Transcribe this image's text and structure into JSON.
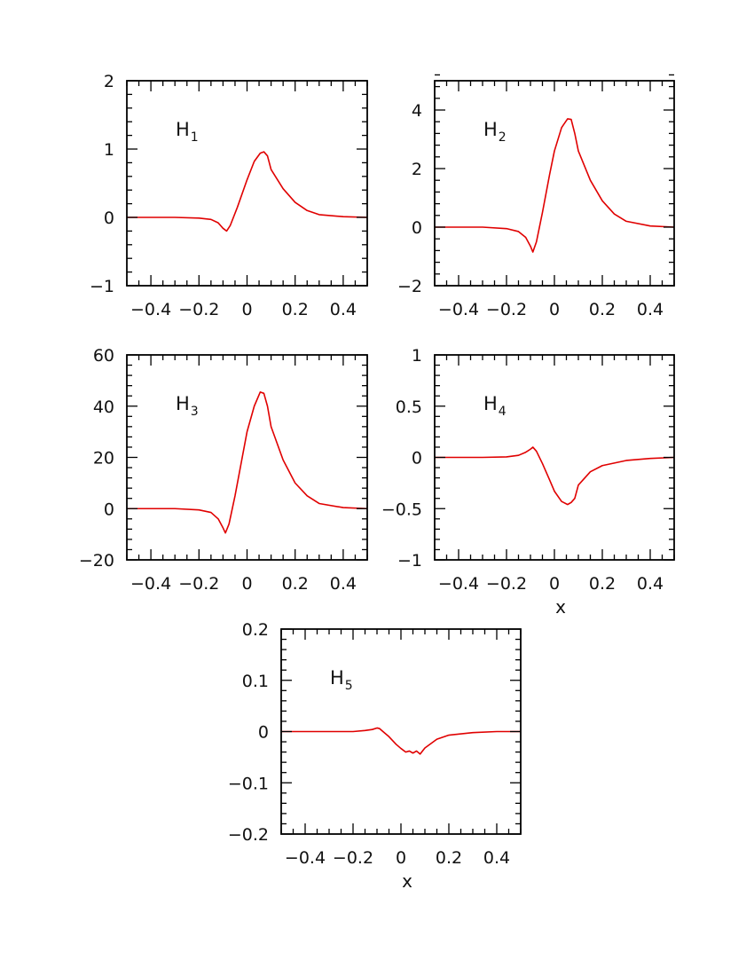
{
  "chart_data": [
    {
      "type": "line",
      "title": "H",
      "title_sub": "1",
      "xlabel": "",
      "ylabel": "",
      "xlim": [
        -0.5,
        0.5
      ],
      "ylim": [
        -1,
        2
      ],
      "xticks": [
        -0.4,
        -0.2,
        0,
        0.2,
        0.4
      ],
      "xtick_labels": [
        "−0.4",
        "−0.2",
        "0",
        "0.2",
        "0.4"
      ],
      "yticks": [
        -1,
        0,
        1,
        2
      ],
      "ytick_labels": [
        "−1",
        "0",
        "1",
        "2"
      ],
      "grid": false,
      "series": [
        {
          "color": "#e00000",
          "x": [
            -0.5,
            -0.3,
            -0.2,
            -0.15,
            -0.12,
            -0.1,
            -0.085,
            -0.07,
            -0.04,
            0.0,
            0.03,
            0.055,
            0.07,
            0.085,
            0.1,
            0.15,
            0.2,
            0.25,
            0.3,
            0.4,
            0.5
          ],
          "y": [
            0.0,
            0.0,
            -0.01,
            -0.03,
            -0.08,
            -0.16,
            -0.2,
            -0.12,
            0.15,
            0.55,
            0.82,
            0.94,
            0.96,
            0.9,
            0.7,
            0.42,
            0.22,
            0.1,
            0.04,
            0.01,
            0.0
          ]
        }
      ]
    },
    {
      "type": "line",
      "title": "H",
      "title_sub": "2",
      "xlabel": "",
      "ylabel": "",
      "xlim": [
        -0.5,
        0.5
      ],
      "ylim": [
        -2,
        5
      ],
      "xticks": [
        -0.4,
        -0.2,
        0,
        0.2,
        0.4
      ],
      "xtick_labels": [
        "−0.4",
        "−0.2",
        "0",
        "0.2",
        "0.4"
      ],
      "yticks": [
        -2,
        0,
        2,
        4
      ],
      "ytick_labels": [
        "−2",
        "0",
        "2",
        "4"
      ],
      "grid": false,
      "series": [
        {
          "color": "#e00000",
          "x": [
            -0.5,
            -0.3,
            -0.2,
            -0.15,
            -0.12,
            -0.1,
            -0.09,
            -0.075,
            -0.05,
            -0.02,
            0.0,
            0.03,
            0.055,
            0.07,
            0.085,
            0.1,
            0.15,
            0.2,
            0.25,
            0.3,
            0.4,
            0.5
          ],
          "y": [
            0.0,
            0.0,
            -0.05,
            -0.15,
            -0.35,
            -0.65,
            -0.85,
            -0.5,
            0.5,
            1.8,
            2.6,
            3.4,
            3.7,
            3.68,
            3.2,
            2.6,
            1.6,
            0.9,
            0.45,
            0.2,
            0.04,
            0.0
          ]
        }
      ]
    },
    {
      "type": "line",
      "title": "H",
      "title_sub": "3",
      "xlabel": "",
      "ylabel": "",
      "xlim": [
        -0.5,
        0.5
      ],
      "ylim": [
        -20,
        60
      ],
      "xticks": [
        -0.4,
        -0.2,
        0,
        0.2,
        0.4
      ],
      "xtick_labels": [
        "−0.4",
        "−0.2",
        "0",
        "0.2",
        "0.4"
      ],
      "yticks": [
        -20,
        0,
        20,
        40,
        60
      ],
      "ytick_labels": [
        "−20",
        "0",
        "20",
        "40",
        "60"
      ],
      "grid": false,
      "series": [
        {
          "color": "#e00000",
          "x": [
            -0.5,
            -0.3,
            -0.2,
            -0.15,
            -0.12,
            -0.1,
            -0.09,
            -0.075,
            -0.05,
            -0.02,
            0.0,
            0.03,
            0.055,
            0.07,
            0.085,
            0.1,
            0.15,
            0.2,
            0.25,
            0.3,
            0.4,
            0.5
          ],
          "y": [
            0.0,
            0.0,
            -0.5,
            -1.5,
            -4.0,
            -7.5,
            -9.5,
            -6.0,
            5.0,
            20.0,
            30.0,
            40.0,
            45.5,
            45.0,
            40.0,
            32.0,
            19.0,
            10.0,
            5.0,
            2.0,
            0.4,
            0.0
          ]
        }
      ]
    },
    {
      "type": "line",
      "title": "H",
      "title_sub": "4",
      "xlabel": "x",
      "ylabel": "",
      "xlim": [
        -0.5,
        0.5
      ],
      "ylim": [
        -1,
        1
      ],
      "xticks": [
        -0.4,
        -0.2,
        0,
        0.2,
        0.4
      ],
      "xtick_labels": [
        "−0.4",
        "−0.2",
        "0",
        "0.2",
        "0.4"
      ],
      "yticks": [
        -1,
        -0.5,
        0,
        0.5,
        1
      ],
      "ytick_labels": [
        "−1",
        "−0.5",
        "0",
        "0.5",
        "1"
      ],
      "grid": false,
      "series": [
        {
          "color": "#e00000",
          "x": [
            -0.5,
            -0.3,
            -0.2,
            -0.15,
            -0.12,
            -0.1,
            -0.09,
            -0.075,
            -0.05,
            -0.02,
            0.0,
            0.03,
            0.055,
            0.07,
            0.085,
            0.1,
            0.15,
            0.2,
            0.3,
            0.4,
            0.5
          ],
          "y": [
            0.0,
            0.0,
            0.005,
            0.02,
            0.05,
            0.08,
            0.1,
            0.06,
            -0.06,
            -0.22,
            -0.33,
            -0.43,
            -0.46,
            -0.44,
            -0.4,
            -0.27,
            -0.14,
            -0.08,
            -0.03,
            -0.01,
            0.0
          ]
        }
      ]
    },
    {
      "type": "line",
      "title": "H",
      "title_sub": "5",
      "xlabel": "x",
      "ylabel": "",
      "xlim": [
        -0.5,
        0.5
      ],
      "ylim": [
        -0.2,
        0.2
      ],
      "xticks": [
        -0.4,
        -0.2,
        0,
        0.2,
        0.4
      ],
      "xtick_labels": [
        "−0.4",
        "−0.2",
        "0",
        "0.2",
        "0.4"
      ],
      "yticks": [
        -0.2,
        -0.1,
        0,
        0.1,
        0.2
      ],
      "ytick_labels": [
        "−0.2",
        "−0.1",
        "0",
        "0.1",
        "0.2"
      ],
      "grid": false,
      "series": [
        {
          "color": "#e00000",
          "x": [
            -0.5,
            -0.3,
            -0.2,
            -0.15,
            -0.12,
            -0.1,
            -0.09,
            -0.075,
            -0.05,
            -0.02,
            0.0,
            0.02,
            0.035,
            0.05,
            0.065,
            0.08,
            0.1,
            0.15,
            0.2,
            0.3,
            0.4,
            0.5
          ],
          "y": [
            0.0,
            0.0,
            0.0,
            0.002,
            0.004,
            0.007,
            0.006,
            0.0,
            -0.01,
            -0.025,
            -0.033,
            -0.04,
            -0.038,
            -0.042,
            -0.038,
            -0.044,
            -0.032,
            -0.015,
            -0.007,
            -0.002,
            0.0,
            0.0
          ]
        }
      ]
    }
  ]
}
